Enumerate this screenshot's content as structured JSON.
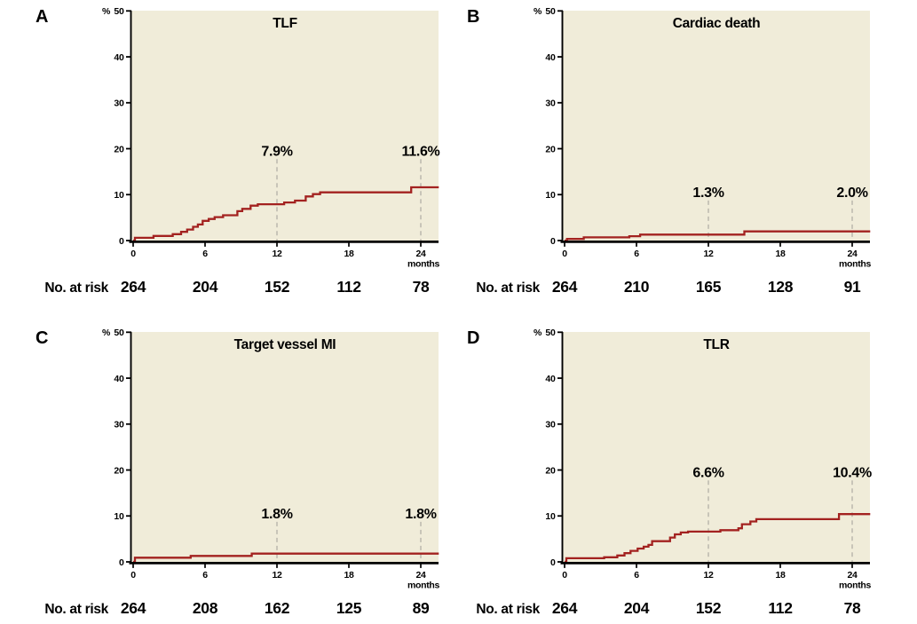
{
  "figure": {
    "risk_label": "No. at risk",
    "x_axis": {
      "ticks": [
        0,
        6,
        12,
        18,
        24
      ],
      "unit": "months",
      "min": 0,
      "max": 25.5
    },
    "y_axis": {
      "ticks": [
        0,
        10,
        20,
        30,
        40,
        50
      ],
      "unit": "%",
      "min": 0,
      "max": 50
    },
    "colors": {
      "curve": "#a32220",
      "plot_bg": "#f0ecd9",
      "reference_line": "#b7b4aa",
      "axis": "#000000",
      "text": "#000000",
      "page_bg": "#ffffff"
    },
    "legend": "none",
    "grid": "off"
  },
  "chart_data": [
    {
      "panel_letter": "A",
      "title": "TLF",
      "type": "line",
      "curve_style": "step",
      "steps": [
        [
          0,
          0
        ],
        [
          0.15,
          0.6
        ],
        [
          1.7,
          1.0
        ],
        [
          3.3,
          1.4
        ],
        [
          4.0,
          1.9
        ],
        [
          4.5,
          2.4
        ],
        [
          5.0,
          3.0
        ],
        [
          5.4,
          3.5
        ],
        [
          5.8,
          4.3
        ],
        [
          6.3,
          4.7
        ],
        [
          6.8,
          5.1
        ],
        [
          7.5,
          5.5
        ],
        [
          8.7,
          6.4
        ],
        [
          9.1,
          6.9
        ],
        [
          9.8,
          7.6
        ],
        [
          10.4,
          7.9
        ],
        [
          12.6,
          8.3
        ],
        [
          13.5,
          8.7
        ],
        [
          14.4,
          9.6
        ],
        [
          15.0,
          10.1
        ],
        [
          15.6,
          10.5
        ],
        [
          23.2,
          11.6
        ],
        [
          25.5,
          11.6
        ]
      ],
      "annotations": [
        {
          "x": 12,
          "label": "7.9%"
        },
        {
          "x": 24,
          "label": "11.6%"
        }
      ],
      "annotation_baseline_pct": 18.5,
      "at_risk": [
        264,
        204,
        152,
        112,
        78
      ]
    },
    {
      "panel_letter": "B",
      "title": "Cardiac death",
      "type": "line",
      "curve_style": "step",
      "steps": [
        [
          0,
          0
        ],
        [
          0.2,
          0.35
        ],
        [
          1.6,
          0.7
        ],
        [
          5.4,
          0.95
        ],
        [
          6.3,
          1.3
        ],
        [
          15.0,
          2.0
        ],
        [
          25.5,
          2.0
        ]
      ],
      "annotations": [
        {
          "x": 12,
          "label": "1.3%"
        },
        {
          "x": 24,
          "label": "2.0%"
        }
      ],
      "annotation_baseline_pct": 9.5,
      "at_risk": [
        264,
        210,
        165,
        128,
        91
      ]
    },
    {
      "panel_letter": "C",
      "title": "Target vessel MI",
      "type": "line",
      "curve_style": "step",
      "steps": [
        [
          0,
          0
        ],
        [
          0.15,
          0.9
        ],
        [
          4.8,
          1.3
        ],
        [
          9.9,
          1.8
        ],
        [
          25.5,
          1.8
        ]
      ],
      "annotations": [
        {
          "x": 12,
          "label": "1.8%"
        },
        {
          "x": 24,
          "label": "1.8%"
        }
      ],
      "annotation_baseline_pct": 9.5,
      "at_risk": [
        264,
        208,
        162,
        125,
        89
      ]
    },
    {
      "panel_letter": "D",
      "title": "TLR",
      "type": "line",
      "curve_style": "step",
      "steps": [
        [
          0,
          0
        ],
        [
          0.15,
          0.8
        ],
        [
          3.3,
          1.0
        ],
        [
          4.4,
          1.4
        ],
        [
          5.0,
          1.9
        ],
        [
          5.5,
          2.4
        ],
        [
          6.1,
          2.9
        ],
        [
          6.6,
          3.3
        ],
        [
          7.0,
          3.7
        ],
        [
          7.3,
          4.5
        ],
        [
          8.8,
          5.3
        ],
        [
          9.2,
          6.0
        ],
        [
          9.7,
          6.4
        ],
        [
          10.3,
          6.6
        ],
        [
          13.0,
          6.9
        ],
        [
          14.5,
          7.3
        ],
        [
          14.8,
          8.2
        ],
        [
          15.5,
          8.8
        ],
        [
          16.0,
          9.3
        ],
        [
          22.9,
          10.4
        ],
        [
          25.5,
          10.4
        ]
      ],
      "annotations": [
        {
          "x": 12,
          "label": "6.6%"
        },
        {
          "x": 24,
          "label": "10.4%"
        }
      ],
      "annotation_baseline_pct": 18.5,
      "at_risk": [
        264,
        204,
        152,
        112,
        78
      ]
    }
  ]
}
